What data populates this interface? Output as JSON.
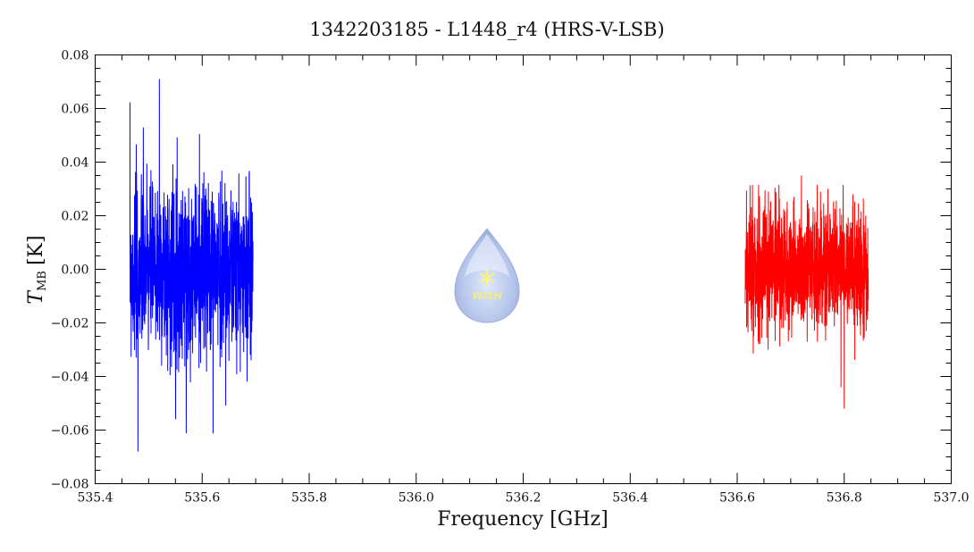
{
  "chart_data": {
    "type": "line",
    "title": "1342203185 - L1448_r4 (HRS-V-LSB)",
    "xlabel": "Frequency [GHz]",
    "ylabel_main": "T",
    "ylabel_sub": "MB",
    "ylabel_unit": "[K]",
    "xlim": [
      535.4,
      537.0
    ],
    "ylim": [
      -0.08,
      0.08
    ],
    "xticks": [
      535.4,
      535.6,
      535.8,
      536.0,
      536.2,
      536.4,
      536.6,
      536.8,
      537.0
    ],
    "xtick_labels": [
      "535.4",
      "535.6",
      "535.8",
      "536.0",
      "536.2",
      "536.4",
      "536.6",
      "536.8",
      "537.0"
    ],
    "yticks": [
      -0.08,
      -0.06,
      -0.04,
      -0.02,
      0.0,
      0.02,
      0.04,
      0.06,
      0.08
    ],
    "ytick_labels": [
      "−0.08",
      "−0.06",
      "−0.04",
      "−0.02",
      "0.00",
      "0.02",
      "0.04",
      "0.06",
      "0.08"
    ],
    "x_minor_step": 0.05,
    "y_minor_step": 0.005,
    "grid": false,
    "series": [
      {
        "name": "blue-band",
        "color": "#0000ff",
        "x_range": [
          535.465,
          535.695
        ],
        "mean": 0.0,
        "rms": 0.016,
        "max": 0.071,
        "max_at": 535.52,
        "min": -0.068,
        "min_at": 535.48,
        "seed": 7
      },
      {
        "name": "red-band",
        "color": "#ff0000",
        "x_range": [
          536.615,
          536.845
        ],
        "mean": 0.0,
        "rms": 0.012,
        "max": 0.035,
        "max_at": 536.72,
        "min": -0.052,
        "min_at": 536.8,
        "seed": 13
      }
    ],
    "logo": {
      "text": "WISH"
    }
  }
}
